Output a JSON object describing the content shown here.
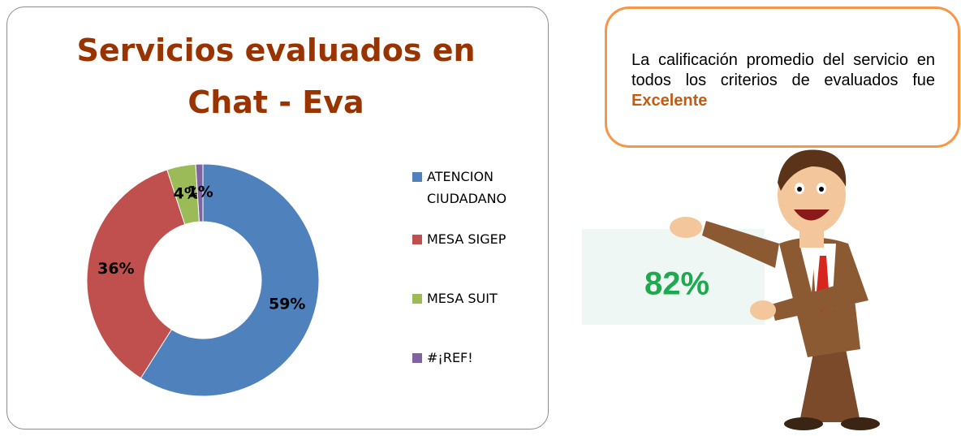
{
  "chart_data": {
    "type": "donut",
    "title": "Servicios evaluados en Chat - Eva",
    "categories": [
      "ATENCION CIUDADANO",
      "MESA SIGEP",
      "MESA SUIT",
      "#¡REF!"
    ],
    "values": [
      59,
      36,
      4,
      1
    ],
    "value_labels": [
      "59%",
      "36%",
      "4%",
      "1%"
    ],
    "colors": [
      "#4f81bd",
      "#c0504d",
      "#9bbb59",
      "#8064a2"
    ],
    "legend": "right"
  },
  "callout": {
    "text": "La calificación promedio del servicio en todos los criterios de evaluados fue",
    "emphasis": "Excelente"
  },
  "sign": {
    "text": "82%"
  }
}
